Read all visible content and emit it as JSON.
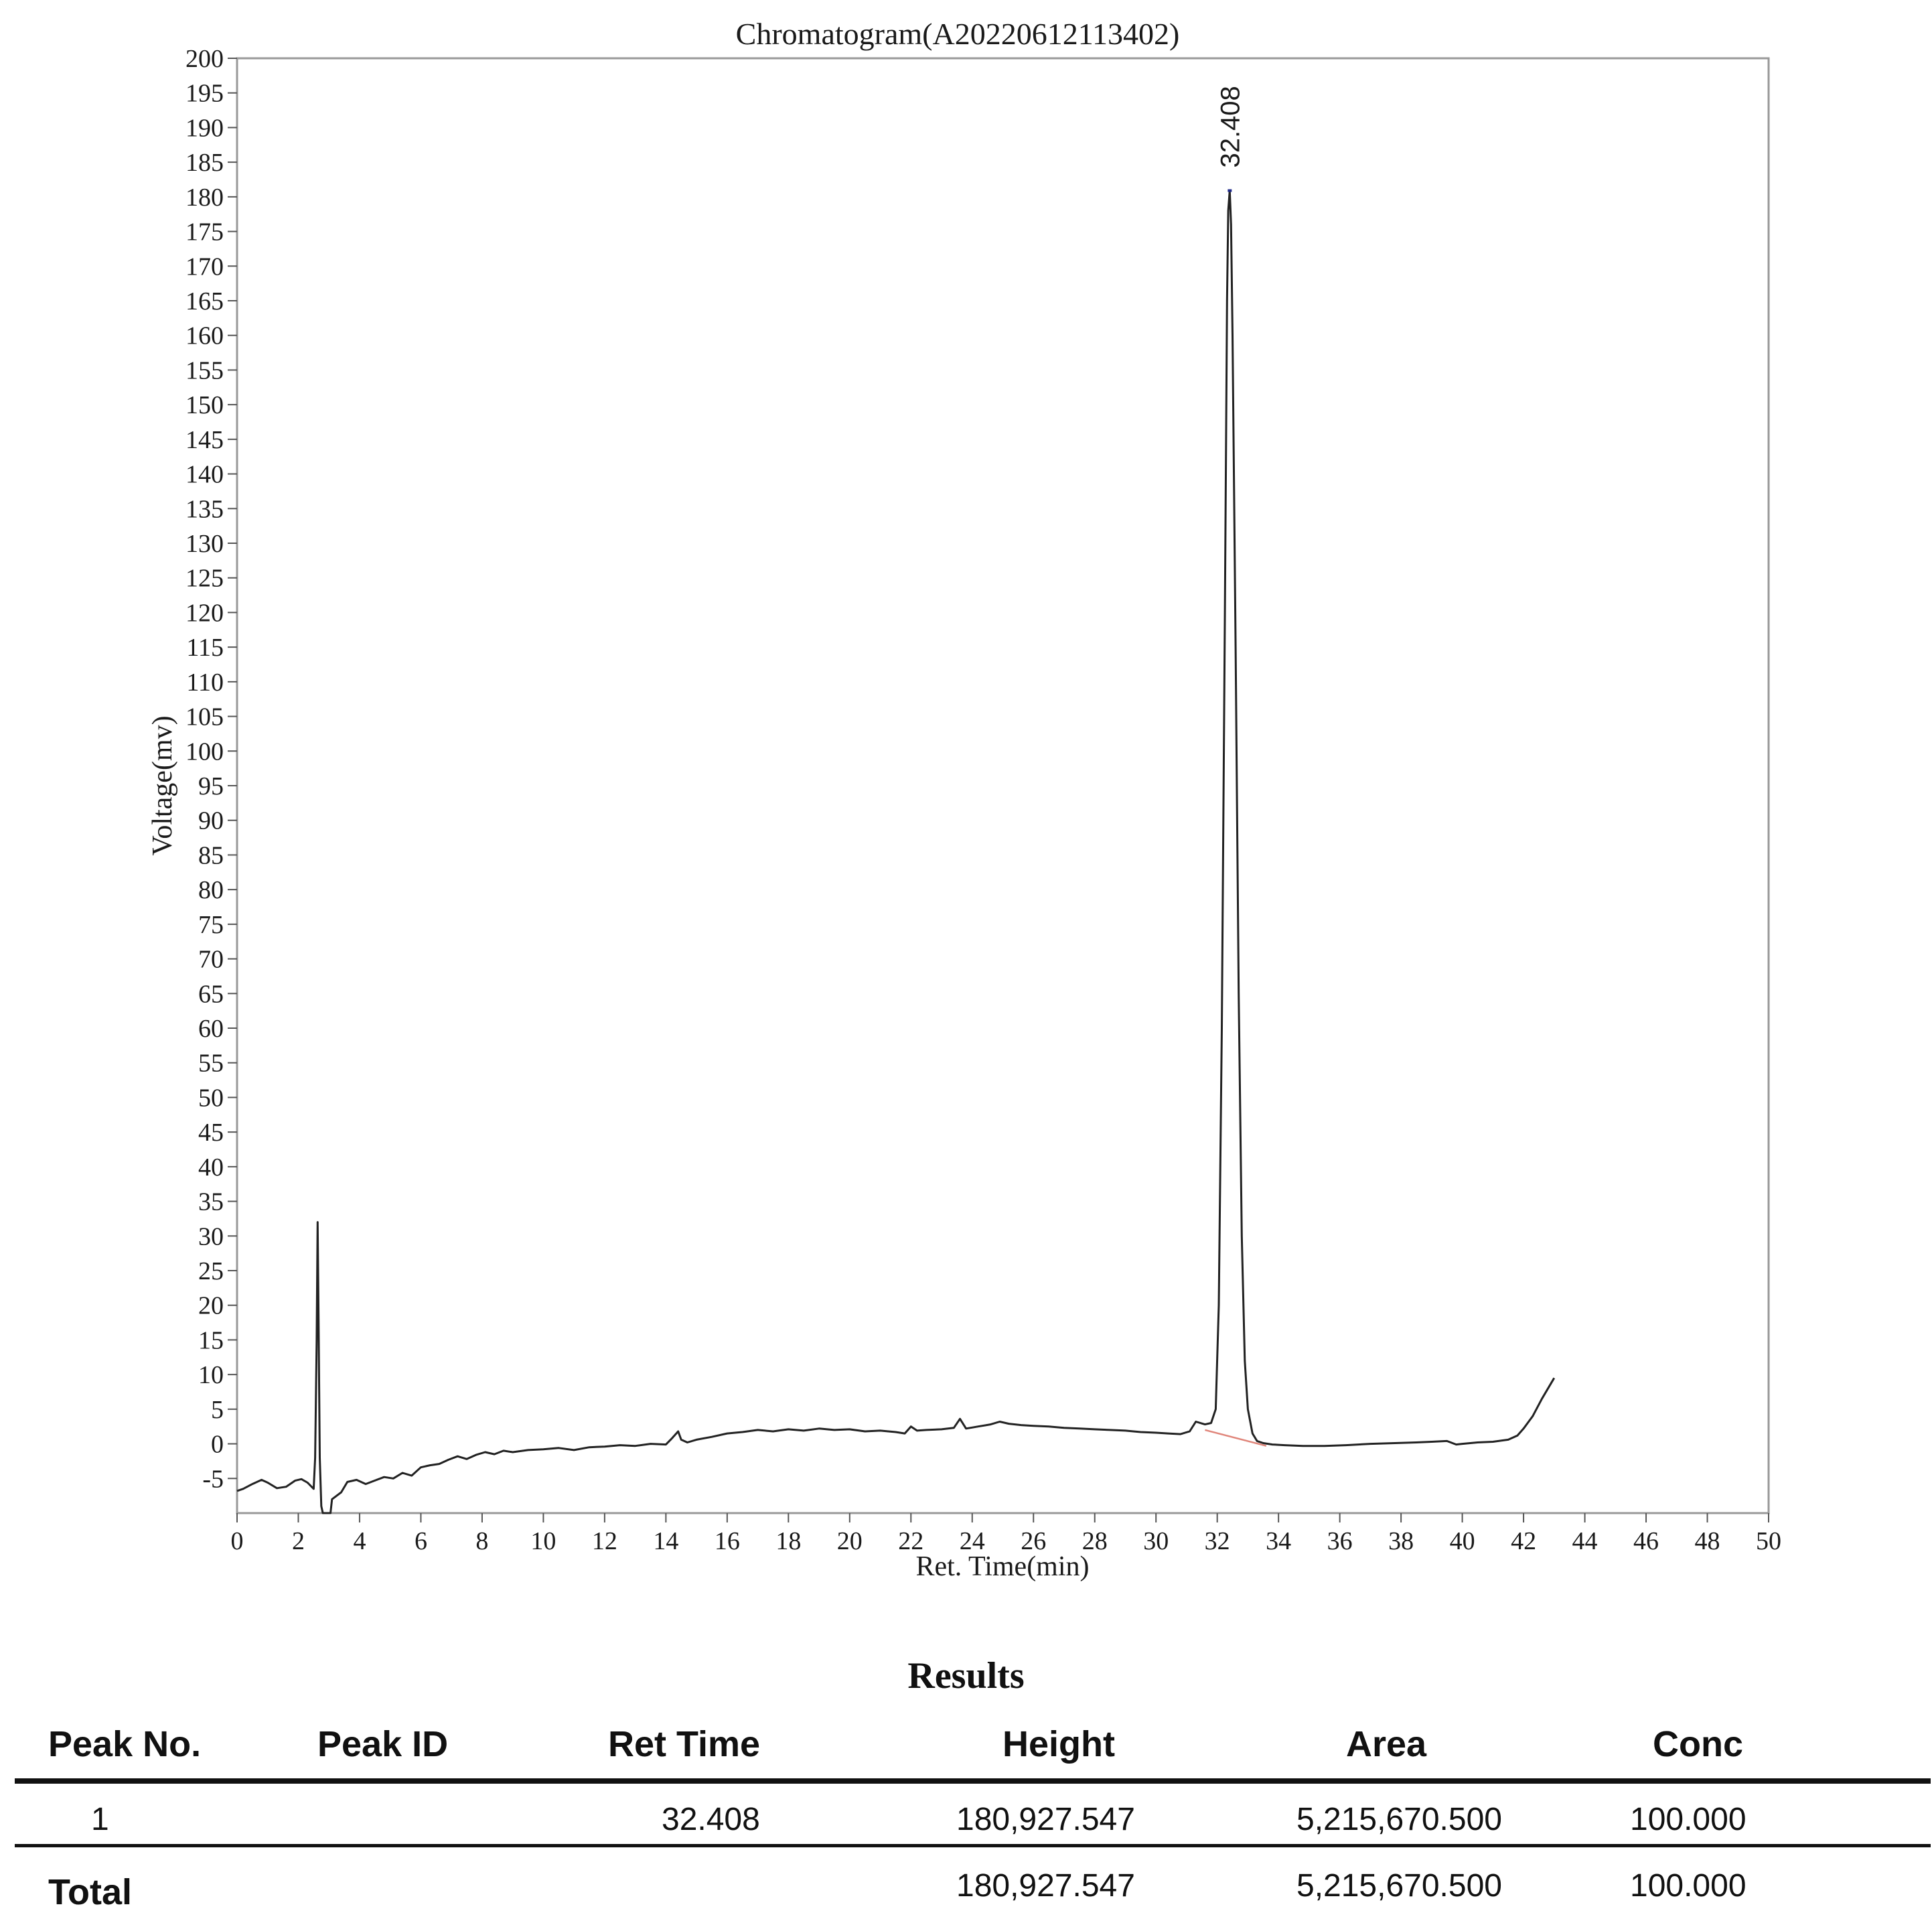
{
  "chart_data": {
    "type": "line",
    "title": "Chromatogram(A20220612113402)",
    "xlabel": "Ret. Time(min)",
    "ylabel": "Voltage(mv)",
    "xlim": [
      0,
      50
    ],
    "ylim": [
      -10,
      200
    ],
    "x_ticks": [
      0,
      2,
      4,
      6,
      8,
      10,
      12,
      14,
      16,
      18,
      20,
      22,
      24,
      26,
      28,
      30,
      32,
      34,
      36,
      38,
      40,
      42,
      44,
      46,
      48,
      50
    ],
    "y_ticks": [
      -5,
      0,
      5,
      10,
      15,
      20,
      25,
      30,
      35,
      40,
      45,
      50,
      55,
      60,
      65,
      70,
      75,
      80,
      85,
      90,
      95,
      100,
      105,
      110,
      115,
      120,
      125,
      130,
      135,
      140,
      145,
      150,
      155,
      160,
      165,
      170,
      175,
      180,
      185,
      190,
      195,
      200
    ],
    "grid": false,
    "colors": {
      "trace": "#222222",
      "baseline": "#e0857a",
      "peak_top": "#1f2a8a",
      "axis": "#999999"
    },
    "series": [
      {
        "x": [
          0,
          0.2,
          0.5,
          0.8,
          1.0,
          1.3,
          1.6,
          1.9,
          2.1,
          2.3,
          2.5,
          2.55,
          2.6,
          2.63,
          2.66,
          2.7,
          2.75,
          2.8,
          3.05,
          3.1,
          3.4,
          3.6,
          3.9,
          4.2,
          4.5,
          4.8,
          5.1,
          5.4,
          5.7,
          6.0,
          6.3,
          6.6,
          6.9,
          7.2,
          7.5,
          7.8,
          8.1,
          8.4,
          8.7,
          9.0,
          9.5,
          10.0,
          10.5,
          11.0,
          11.5,
          12.0,
          12.5,
          13.0,
          13.5,
          14.0,
          14.2,
          14.4,
          14.5,
          14.7,
          15.0,
          15.5,
          16.0,
          16.5,
          17.0,
          17.5,
          18.0,
          18.5,
          19.0,
          19.5,
          20.0,
          20.5,
          21.0,
          21.5,
          21.8,
          22.0,
          22.2,
          22.5,
          23.0,
          23.4,
          23.6,
          23.8,
          24.2,
          24.6,
          24.9,
          25.2,
          25.6,
          26.0,
          26.5,
          27.0,
          27.5,
          28.0,
          28.5,
          29.0,
          29.5,
          30.0,
          30.4,
          30.8,
          31.1,
          31.3,
          31.6,
          31.8,
          31.95,
          32.05,
          32.15,
          32.25,
          32.32,
          32.36,
          32.408,
          32.45,
          32.5,
          32.6,
          32.7,
          32.8,
          32.9,
          33.0,
          33.15,
          33.3,
          33.5,
          33.8,
          34.2,
          34.8,
          35.5,
          36.2,
          37.0,
          37.8,
          38.5,
          39.0,
          39.5,
          39.8,
          40.0,
          40.5,
          41.0,
          41.5,
          41.8,
          42.0,
          42.3,
          42.6,
          43.0
        ],
        "y": [
          -6.8,
          -6.5,
          -5.8,
          -5.2,
          -5.6,
          -6.4,
          -6.2,
          -5.3,
          -5.1,
          -5.6,
          -6.5,
          -2.0,
          15.0,
          32.0,
          18.0,
          -2.0,
          -9.0,
          -10,
          -10,
          -8.0,
          -7.0,
          -5.5,
          -5.2,
          -5.8,
          -5.3,
          -4.8,
          -5.0,
          -4.2,
          -4.6,
          -3.4,
          -3.1,
          -2.9,
          -2.3,
          -1.8,
          -2.2,
          -1.6,
          -1.2,
          -1.5,
          -1.0,
          -1.2,
          -0.9,
          -0.8,
          -0.6,
          -0.9,
          -0.5,
          -0.4,
          -0.2,
          -0.3,
          0.0,
          -0.1,
          0.8,
          1.8,
          0.6,
          0.2,
          0.6,
          1.0,
          1.5,
          1.7,
          2.0,
          1.8,
          2.1,
          1.9,
          2.2,
          2.0,
          2.1,
          1.8,
          1.9,
          1.7,
          1.5,
          2.5,
          1.9,
          2.0,
          2.1,
          2.3,
          3.6,
          2.2,
          2.5,
          2.8,
          3.2,
          2.9,
          2.7,
          2.6,
          2.5,
          2.3,
          2.2,
          2.1,
          2.0,
          1.9,
          1.7,
          1.6,
          1.5,
          1.4,
          1.8,
          3.2,
          2.8,
          3.0,
          5.0,
          20.0,
          60.0,
          120.0,
          165.0,
          178.0,
          180.9,
          176.0,
          160.0,
          115.0,
          65.0,
          30.0,
          12.0,
          5.0,
          1.5,
          0.4,
          0.1,
          -0.1,
          -0.2,
          -0.3,
          -0.3,
          -0.2,
          0.0,
          0.1,
          0.2,
          0.3,
          0.4,
          -0.1,
          0.0,
          0.2,
          0.3,
          0.6,
          1.2,
          2.2,
          4.0,
          6.5,
          9.5
        ]
      }
    ],
    "baselines": [
      {
        "x": [
          31.6,
          33.6
        ],
        "y": [
          2.0,
          -0.3
        ]
      }
    ],
    "annotations": [
      {
        "x": 32.408,
        "y": 180.9,
        "label": "32.408"
      }
    ]
  },
  "results": {
    "title": "Results",
    "headers": [
      "Peak No.",
      "Peak ID",
      "Ret Time",
      "Height",
      "Area",
      "Conc"
    ],
    "rows": [
      {
        "peak_no": "1",
        "peak_id": "",
        "ret_time": "32.408",
        "height": "180,927.547",
        "area": "5,215,670.500",
        "conc": "100.000"
      }
    ],
    "total": {
      "label": "Total",
      "height": "180,927.547",
      "area": "5,215,670.500",
      "conc": "100.000"
    }
  }
}
